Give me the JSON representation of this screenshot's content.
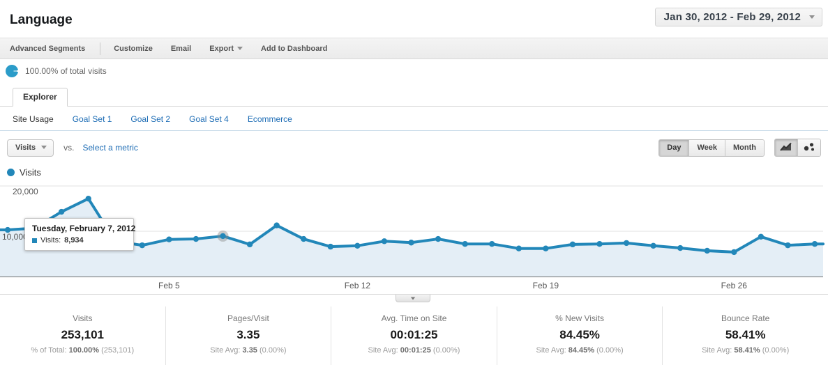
{
  "header": {
    "title": "Language",
    "date_range": "Jan 30, 2012 - Feb 29, 2012"
  },
  "toolbar": {
    "advanced_segments": "Advanced Segments",
    "customize": "Customize",
    "email": "Email",
    "export": "Export",
    "add_to_dashboard": "Add to Dashboard"
  },
  "segment": {
    "label": "100.00% of total visits"
  },
  "tabs": {
    "explorer": "Explorer"
  },
  "subnav": {
    "items": [
      "Site Usage",
      "Goal Set 1",
      "Goal Set 2",
      "Goal Set 4",
      "Ecommerce"
    ]
  },
  "controls": {
    "metric_button": "Visits",
    "vs_label": "vs.",
    "select_metric": "Select a metric",
    "granularity": [
      "Day",
      "Week",
      "Month"
    ],
    "active_granularity": "Day"
  },
  "legend": {
    "label": "Visits"
  },
  "tooltip": {
    "title": "Tuesday, February 7, 2012",
    "label": "Visits:",
    "value": "8,934"
  },
  "chart_data": {
    "type": "line",
    "title": "Visits",
    "x": [
      "Jan 30",
      "Jan 31",
      "Feb 1",
      "Feb 2",
      "Feb 3",
      "Feb 4",
      "Feb 5",
      "Feb 6",
      "Feb 7",
      "Feb 8",
      "Feb 9",
      "Feb 10",
      "Feb 11",
      "Feb 12",
      "Feb 13",
      "Feb 14",
      "Feb 15",
      "Feb 16",
      "Feb 17",
      "Feb 18",
      "Feb 19",
      "Feb 20",
      "Feb 21",
      "Feb 22",
      "Feb 23",
      "Feb 24",
      "Feb 25",
      "Feb 26",
      "Feb 27",
      "Feb 28",
      "Feb 29"
    ],
    "series": [
      {
        "name": "Visits",
        "color": "#2287b9",
        "area_color": "#e4eef6",
        "values": [
          10300,
          10700,
          14300,
          17200,
          7800,
          6900,
          8200,
          8300,
          8934,
          7100,
          11300,
          8300,
          6600,
          6800,
          7800,
          7500,
          8300,
          7200,
          7200,
          6200,
          6200,
          7100,
          7200,
          7400,
          6800,
          6300,
          5700,
          5400,
          8800,
          6900,
          7200
        ]
      }
    ],
    "x_tick_labels": [
      "Feb 5",
      "Feb 12",
      "Feb 19",
      "Feb 26"
    ],
    "x_tick_positions": [
      6,
      13,
      20,
      27
    ],
    "y_ticks": [
      10000,
      20000
    ],
    "ylim": [
      0,
      21000
    ],
    "grid": true,
    "legend_position": "top-left",
    "highlighted_point": {
      "x": "Feb 7",
      "index": 8,
      "value": 8934
    }
  },
  "metrics": [
    {
      "label": "Visits",
      "value": "253,101",
      "sub_prefix": "% of Total:",
      "sub_value": "100.00%",
      "sub_suffix": "(253,101)"
    },
    {
      "label": "Pages/Visit",
      "value": "3.35",
      "sub_prefix": "Site Avg:",
      "sub_value": "3.35",
      "sub_suffix": "(0.00%)"
    },
    {
      "label": "Avg. Time on Site",
      "value": "00:01:25",
      "sub_prefix": "Site Avg:",
      "sub_value": "00:01:25",
      "sub_suffix": "(0.00%)"
    },
    {
      "label": "% New Visits",
      "value": "84.45%",
      "sub_prefix": "Site Avg:",
      "sub_value": "84.45%",
      "sub_suffix": "(0.00%)"
    },
    {
      "label": "Bounce Rate",
      "value": "58.41%",
      "sub_prefix": "Site Avg:",
      "sub_value": "58.41%",
      "sub_suffix": "(0.00%)"
    }
  ],
  "colors": {
    "series_blue": "#2287b9",
    "area_fill": "#e4eef6",
    "link_blue": "#1e6db5",
    "donut_blue": "#2b9cc9"
  }
}
